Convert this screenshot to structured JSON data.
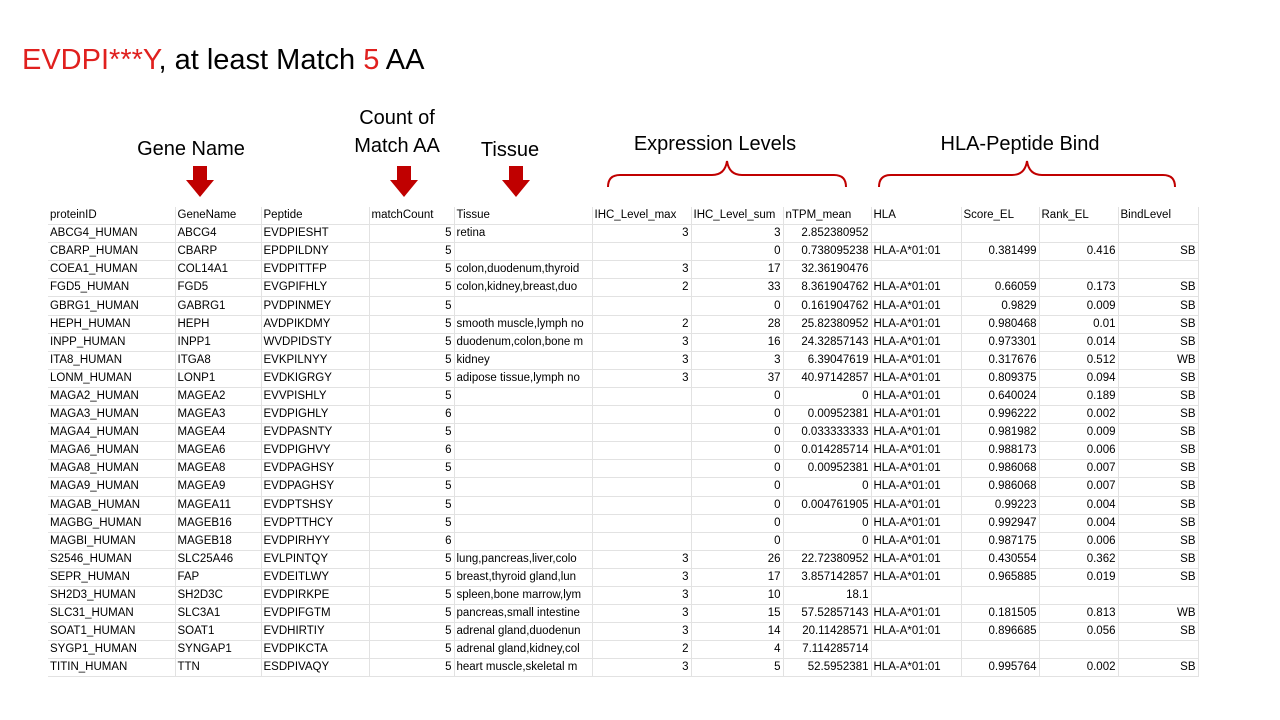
{
  "title": {
    "pattern": "EVDPI***Y",
    "middle": ", at least Match ",
    "number": "5",
    "suffix": " AA"
  },
  "annotations": {
    "gene_name": "Gene Name",
    "count_line1": "Count of",
    "count_line2": "Match AA",
    "tissue": "Tissue",
    "expression": "Expression Levels",
    "hla_bind": "HLA-Peptide Bind"
  },
  "colors": {
    "accent_red": "#e0201e",
    "arrow_red": "#c00000",
    "brace_red": "#c00000"
  },
  "table": {
    "columns": [
      "proteinID",
      "GeneName",
      "Peptide",
      "matchCount",
      "Tissue",
      "IHC_Level_max",
      "IHC_Level_sum",
      "nTPM_mean",
      "HLA",
      "Score_EL",
      "Rank_EL",
      "BindLevel"
    ],
    "rows": [
      [
        "ABCG4_HUMAN",
        "ABCG4",
        "EVDPIESHT",
        "5",
        "retina",
        "3",
        "3",
        "2.852380952",
        "",
        "",
        "",
        ""
      ],
      [
        "CBARP_HUMAN",
        "CBARP",
        "EPDPILDNY",
        "5",
        "",
        "",
        "0",
        "0.738095238",
        "HLA-A*01:01",
        "0.381499",
        "0.416",
        "SB"
      ],
      [
        "COEA1_HUMAN",
        "COL14A1",
        "EVDPITTFP",
        "5",
        "colon,duodenum,thyroid",
        "3",
        "17",
        "32.36190476",
        "",
        "",
        "",
        ""
      ],
      [
        "FGD5_HUMAN",
        "FGD5",
        "EVGPIFHLY",
        "5",
        "colon,kidney,breast,duo",
        "2",
        "33",
        "8.361904762",
        "HLA-A*01:01",
        "0.66059",
        "0.173",
        "SB"
      ],
      [
        "GBRG1_HUMAN",
        "GABRG1",
        "PVDPINMEY",
        "5",
        "",
        "",
        "0",
        "0.161904762",
        "HLA-A*01:01",
        "0.9829",
        "0.009",
        "SB"
      ],
      [
        "HEPH_HUMAN",
        "HEPH",
        "AVDPIKDMY",
        "5",
        "smooth muscle,lymph no",
        "2",
        "28",
        "25.82380952",
        "HLA-A*01:01",
        "0.980468",
        "0.01",
        "SB"
      ],
      [
        "INPP_HUMAN",
        "INPP1",
        "WVDPIDSTY",
        "5",
        "duodenum,colon,bone m",
        "3",
        "16",
        "24.32857143",
        "HLA-A*01:01",
        "0.973301",
        "0.014",
        "SB"
      ],
      [
        "ITA8_HUMAN",
        "ITGA8",
        "EVKPILNYY",
        "5",
        "kidney",
        "3",
        "3",
        "6.39047619",
        "HLA-A*01:01",
        "0.317676",
        "0.512",
        "WB"
      ],
      [
        "LONM_HUMAN",
        "LONP1",
        "EVDKIGRGY",
        "5",
        "adipose tissue,lymph no",
        "3",
        "37",
        "40.97142857",
        "HLA-A*01:01",
        "0.809375",
        "0.094",
        "SB"
      ],
      [
        "MAGA2_HUMAN",
        "MAGEA2",
        "EVVPISHLY",
        "5",
        "",
        "",
        "0",
        "0",
        "HLA-A*01:01",
        "0.640024",
        "0.189",
        "SB"
      ],
      [
        "MAGA3_HUMAN",
        "MAGEA3",
        "EVDPIGHLY",
        "6",
        "",
        "",
        "0",
        "0.00952381",
        "HLA-A*01:01",
        "0.996222",
        "0.002",
        "SB"
      ],
      [
        "MAGA4_HUMAN",
        "MAGEA4",
        "EVDPASNTY",
        "5",
        "",
        "",
        "0",
        "0.033333333",
        "HLA-A*01:01",
        "0.981982",
        "0.009",
        "SB"
      ],
      [
        "MAGA6_HUMAN",
        "MAGEA6",
        "EVDPIGHVY",
        "6",
        "",
        "",
        "0",
        "0.014285714",
        "HLA-A*01:01",
        "0.988173",
        "0.006",
        "SB"
      ],
      [
        "MAGA8_HUMAN",
        "MAGEA8",
        "EVDPAGHSY",
        "5",
        "",
        "",
        "0",
        "0.00952381",
        "HLA-A*01:01",
        "0.986068",
        "0.007",
        "SB"
      ],
      [
        "MAGA9_HUMAN",
        "MAGEA9",
        "EVDPAGHSY",
        "5",
        "",
        "",
        "0",
        "0",
        "HLA-A*01:01",
        "0.986068",
        "0.007",
        "SB"
      ],
      [
        "MAGAB_HUMAN",
        "MAGEA11",
        "EVDPTSHSY",
        "5",
        "",
        "",
        "0",
        "0.004761905",
        "HLA-A*01:01",
        "0.99223",
        "0.004",
        "SB"
      ],
      [
        "MAGBG_HUMAN",
        "MAGEB16",
        "EVDPTTHCY",
        "5",
        "",
        "",
        "0",
        "0",
        "HLA-A*01:01",
        "0.992947",
        "0.004",
        "SB"
      ],
      [
        "MAGBI_HUMAN",
        "MAGEB18",
        "EVDPIRHYY",
        "6",
        "",
        "",
        "0",
        "0",
        "HLA-A*01:01",
        "0.987175",
        "0.006",
        "SB"
      ],
      [
        "S2546_HUMAN",
        "SLC25A46",
        "EVLPINTQY",
        "5",
        "lung,pancreas,liver,colo",
        "3",
        "26",
        "22.72380952",
        "HLA-A*01:01",
        "0.430554",
        "0.362",
        "SB"
      ],
      [
        "SEPR_HUMAN",
        "FAP",
        "EVDEITLWY",
        "5",
        "breast,thyroid gland,lun",
        "3",
        "17",
        "3.857142857",
        "HLA-A*01:01",
        "0.965885",
        "0.019",
        "SB"
      ],
      [
        "SH2D3_HUMAN",
        "SH2D3C",
        "EVDPIRKPE",
        "5",
        "spleen,bone marrow,lym",
        "3",
        "10",
        "18.1",
        "",
        "",
        "",
        ""
      ],
      [
        "SLC31_HUMAN",
        "SLC3A1",
        "EVDPIFGTM",
        "5",
        "pancreas,small intestine",
        "3",
        "15",
        "57.52857143",
        "HLA-A*01:01",
        "0.181505",
        "0.813",
        "WB"
      ],
      [
        "SOAT1_HUMAN",
        "SOAT1",
        "EVDHIRTIY",
        "5",
        "adrenal gland,duodenun",
        "3",
        "14",
        "20.11428571",
        "HLA-A*01:01",
        "0.896685",
        "0.056",
        "SB"
      ],
      [
        "SYGP1_HUMAN",
        "SYNGAP1",
        "EVDPIKCTA",
        "5",
        "adrenal gland,kidney,col",
        "2",
        "4",
        "7.114285714",
        "",
        "",
        "",
        ""
      ],
      [
        "TITIN_HUMAN",
        "TTN",
        "ESDPIVAQY",
        "5",
        "heart muscle,skeletal m",
        "3",
        "5",
        "52.5952381",
        "HLA-A*01:01",
        "0.995764",
        "0.002",
        "SB"
      ]
    ]
  }
}
